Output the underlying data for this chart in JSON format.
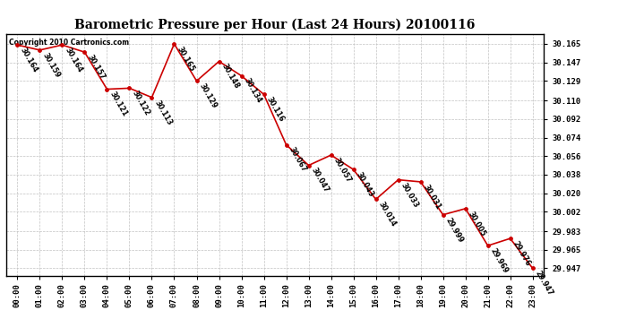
{
  "title": "Barometric Pressure per Hour (Last 24 Hours) 20100116",
  "copyright": "Copyright 2010 Cartronics.com",
  "hours": [
    "00:00",
    "01:00",
    "02:00",
    "03:00",
    "04:00",
    "05:00",
    "06:00",
    "07:00",
    "08:00",
    "09:00",
    "10:00",
    "11:00",
    "12:00",
    "13:00",
    "14:00",
    "15:00",
    "16:00",
    "17:00",
    "18:00",
    "19:00",
    "20:00",
    "21:00",
    "22:00",
    "23:00"
  ],
  "values": [
    30.164,
    30.159,
    30.164,
    30.157,
    30.121,
    30.122,
    30.113,
    30.165,
    30.129,
    30.148,
    30.134,
    30.116,
    30.067,
    30.047,
    30.057,
    30.043,
    30.014,
    30.033,
    30.031,
    29.999,
    30.005,
    29.969,
    29.976,
    29.947
  ],
  "line_color": "#cc0000",
  "marker_color": "#cc0000",
  "marker_face": "#cc0000",
  "bg_color": "#ffffff",
  "grid_color": "#bbbbbb",
  "yticks": [
    29.947,
    29.965,
    29.983,
    30.002,
    30.02,
    30.038,
    30.056,
    30.074,
    30.092,
    30.11,
    30.129,
    30.147,
    30.165
  ],
  "ymin": 29.94,
  "ymax": 30.175,
  "title_fontsize": 10,
  "label_fontsize": 6.5,
  "annot_fontsize": 5.8
}
